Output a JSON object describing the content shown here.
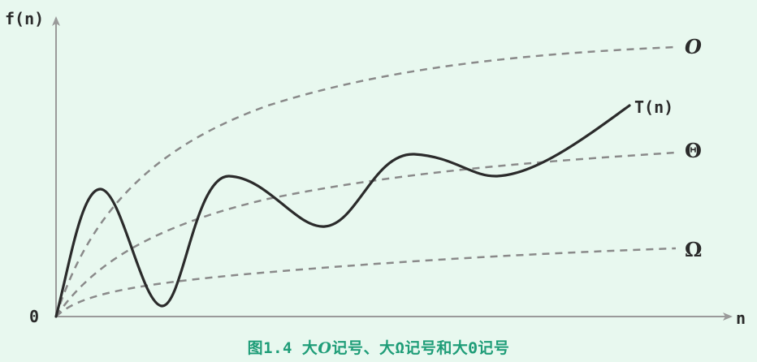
{
  "axes": {
    "y_label": "f(n)",
    "x_label": "n",
    "origin_label": "0"
  },
  "curves": {
    "T": {
      "label": "T(n)"
    },
    "O": {
      "label": "O"
    },
    "Theta": {
      "label": "Θ"
    },
    "Omega": {
      "label": "Ω"
    }
  },
  "caption": {
    "prefix": "图1.4 大",
    "sym1": "O",
    "mid1": "记号、大Ω记号和大Θ记号"
  },
  "colors": {
    "background": "#e8f8ef",
    "axis": "#9a9a9a",
    "main_curve": "#2b2b2b",
    "bound_curves": "#8a8a8a",
    "caption": "#1f9d78"
  }
}
